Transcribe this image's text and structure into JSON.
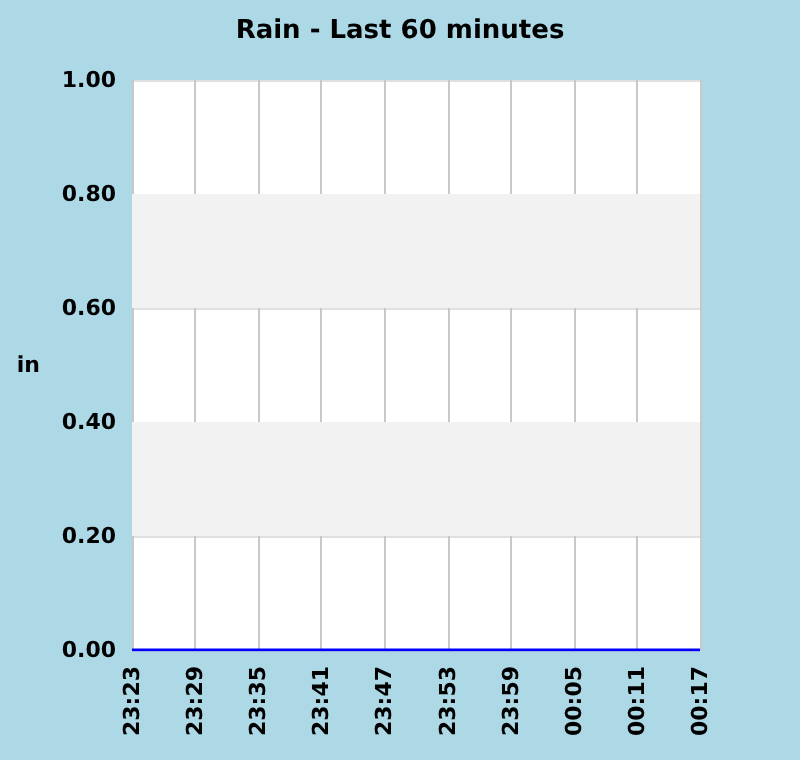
{
  "chart_data": {
    "type": "line",
    "title": "Rain - Last 60 minutes",
    "ylabel": "in",
    "categories": [
      "23:23",
      "23:29",
      "23:35",
      "23:41",
      "23:47",
      "23:53",
      "23:59",
      "00:05",
      "00:11",
      "00:17"
    ],
    "series": [
      {
        "color": "#0000ff",
        "values": [
          0,
          0,
          0,
          0,
          0,
          0,
          0,
          0,
          0,
          0
        ]
      }
    ],
    "ylim": [
      0,
      1
    ],
    "yticks": [
      {
        "value": 0,
        "label": "0.00"
      },
      {
        "value": 0.2,
        "label": "0.20"
      },
      {
        "value": 0.4,
        "label": "0.40"
      },
      {
        "value": 0.6,
        "label": "0.60"
      },
      {
        "value": 0.8,
        "label": "0.80"
      },
      {
        "value": 1,
        "label": "1.00"
      }
    ],
    "bands": [
      {
        "axis": "y",
        "from": 0.2,
        "to": 0.4,
        "color": "#f2f2f2"
      },
      {
        "axis": "y",
        "from": 0.6,
        "to": 0.8,
        "color": "#f2f2f2"
      }
    ],
    "grid": true,
    "marker": "none",
    "line_style": "solid"
  }
}
